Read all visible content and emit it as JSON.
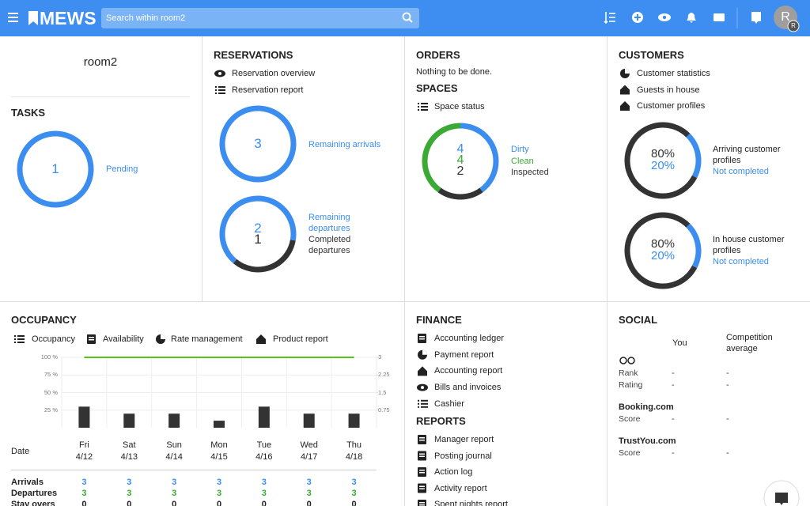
{
  "header": {
    "logo": "MEWS",
    "search_placeholder": "Search within room2",
    "avatar": "R",
    "avatar_badge": "R"
  },
  "tasks": {
    "room": "room2",
    "title": "TASKS",
    "ring": {
      "value": 1,
      "label": "Pending"
    }
  },
  "reservations": {
    "title": "RESERVATIONS",
    "links": [
      "Reservation overview",
      "Reservation report"
    ],
    "arrivals": {
      "value": 3,
      "label": "Remaining arrivals"
    },
    "departures": [
      {
        "value": 2,
        "label": "Remaining departures"
      },
      {
        "value": 1,
        "label": "Completed departures"
      }
    ]
  },
  "orders": {
    "title": "ORDERS",
    "message": "Nothing to be done."
  },
  "spaces": {
    "title": "SPACES",
    "links": [
      "Space status"
    ],
    "states": [
      {
        "value": 4,
        "label": "Dirty"
      },
      {
        "value": 4,
        "label": "Clean"
      },
      {
        "value": 2,
        "label": "Inspected"
      }
    ]
  },
  "customers": {
    "title": "CUSTOMERS",
    "links": [
      "Customer statistics",
      "Guests in house",
      "Customer profiles"
    ],
    "profiles": [
      {
        "label": "Arriving customer profiles",
        "status": "Not completed",
        "completed": {
          "value": 80,
          "label": "80%"
        },
        "not_completed": {
          "value": 20,
          "label": "20%"
        }
      },
      {
        "label": "In house customer profiles",
        "status": "Not completed",
        "completed": {
          "value": 80,
          "label": "80%"
        },
        "not_completed": {
          "value": 20,
          "label": "20%"
        }
      }
    ]
  },
  "occupancy": {
    "title": "OCCUPANCY",
    "tabs": [
      "Occupancy",
      "Availability",
      "Rate management",
      "Product report"
    ],
    "chart": {
      "ylim": [
        0,
        100
      ],
      "yticks": [
        {
          "value": 25,
          "label": "25 %"
        },
        {
          "value": 50,
          "label": "50 %"
        },
        {
          "value": 75,
          "label": "75 %"
        },
        {
          "value": 100,
          "label": "100 %"
        }
      ],
      "y2lim": [
        0,
        3
      ],
      "y2ticks": [
        0.75,
        1.5,
        2.25,
        3
      ],
      "series": [
        {
          "color": "#333333",
          "values": [
            30,
            20,
            20,
            10,
            30,
            20,
            20
          ]
        },
        {
          "color": "#52c41a",
          "axis": "y2",
          "values": [
            3,
            3,
            3,
            3,
            3,
            3,
            3
          ]
        }
      ]
    },
    "date_label": "Date",
    "days": [
      "Fri",
      "Sat",
      "Sun",
      "Mon",
      "Tue",
      "Wed",
      "Thu"
    ],
    "dates": [
      "4/12",
      "4/13",
      "4/14",
      "4/15",
      "4/16",
      "4/17",
      "4/18"
    ],
    "rows": [
      {
        "label": "Arrivals",
        "color": "#3b8ef0",
        "values": [
          3,
          3,
          3,
          3,
          3,
          3,
          3
        ]
      },
      {
        "label": "Departures",
        "color": "#3aaa35",
        "values": [
          3,
          3,
          3,
          3,
          3,
          3,
          3
        ]
      },
      {
        "label": "Stay overs",
        "color": "#222222",
        "values": [
          0,
          0,
          0,
          0,
          0,
          0,
          0
        ]
      }
    ]
  },
  "finance": {
    "title": "FINANCE",
    "links": [
      "Accounting ledger",
      "Payment report",
      "Accounting report",
      "Bills and invoices",
      "Cashier"
    ]
  },
  "reports": {
    "title": "REPORTS",
    "links": [
      "Manager report",
      "Posting journal",
      "Action log",
      "Activity report",
      "Spent nights report"
    ]
  },
  "social": {
    "title": "SOCIAL",
    "columns": [
      "You",
      "Competition average"
    ],
    "groups": [
      {
        "rows": [
          {
            "label": "Rank",
            "you": "-",
            "competition": "-"
          },
          {
            "label": "Rating",
            "you": "-",
            "competition": "-"
          }
        ]
      },
      {
        "name": "Booking.com",
        "rows": [
          {
            "label": "Score",
            "you": "-",
            "competition": "-"
          }
        ]
      },
      {
        "name": "TrustYou.com",
        "rows": [
          {
            "label": "Score",
            "you": "-",
            "competition": "-"
          }
        ]
      }
    ]
  }
}
